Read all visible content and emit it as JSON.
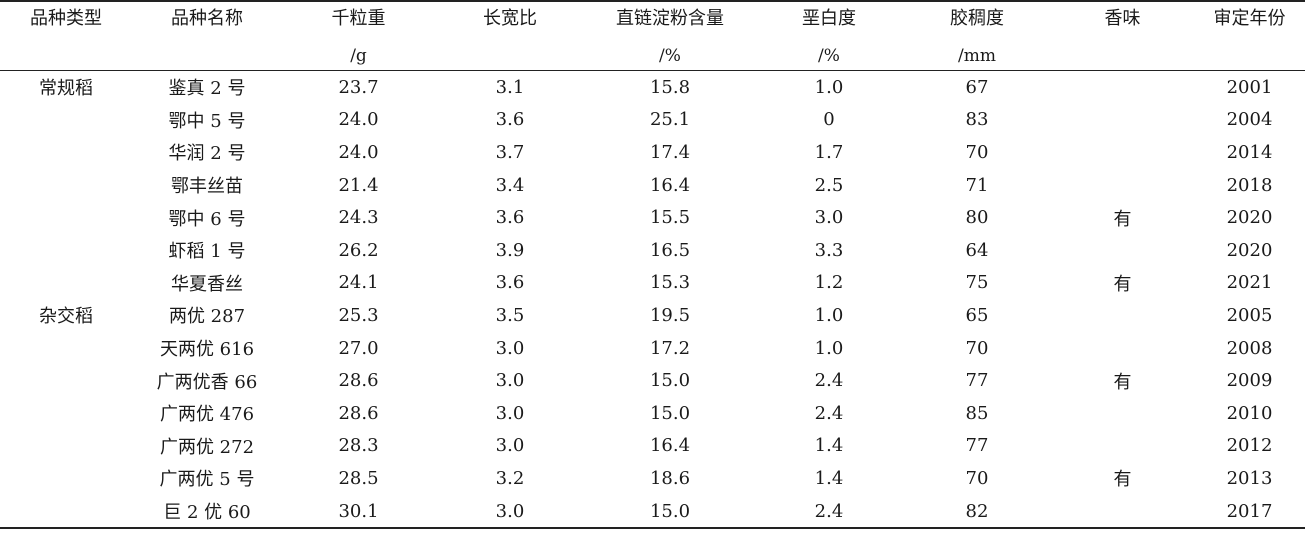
{
  "headers": [
    {
      "label": "品种类型",
      "unit": ""
    },
    {
      "label": "品种名称",
      "unit": ""
    },
    {
      "label": "千粒重",
      "unit": "/g"
    },
    {
      "label": "长宽比",
      "unit": ""
    },
    {
      "label": "直链淀粉含量",
      "unit": "/%"
    },
    {
      "label": "垩白度",
      "unit": "/%"
    },
    {
      "label": "胶稠度",
      "unit": "/mm"
    },
    {
      "label": "香味",
      "unit": ""
    },
    {
      "label": "审定年份",
      "unit": ""
    }
  ],
  "rows": [
    [
      "常规稻",
      "鉴真 2 号",
      "23.7",
      "3.1",
      "15.8",
      "1.0",
      "67",
      "",
      "2001"
    ],
    [
      "",
      "鄂中 5 号",
      "24.0",
      "3.6",
      "25.1",
      "0",
      "83",
      "",
      "2004"
    ],
    [
      "",
      "华润 2 号",
      "24.0",
      "3.7",
      "17.4",
      "1.7",
      "70",
      "",
      "2014"
    ],
    [
      "",
      "鄂丰丝苗",
      "21.4",
      "3.4",
      "16.4",
      "2.5",
      "71",
      "",
      "2018"
    ],
    [
      "",
      "鄂中 6 号",
      "24.3",
      "3.6",
      "15.5",
      "3.0",
      "80",
      "有",
      "2020"
    ],
    [
      "",
      "虾稻 1 号",
      "26.2",
      "3.9",
      "16.5",
      "3.3",
      "64",
      "",
      "2020"
    ],
    [
      "",
      "华夏香丝",
      "24.1",
      "3.6",
      "15.3",
      "1.2",
      "75",
      "有",
      "2021"
    ],
    [
      "杂交稻",
      "两优 287",
      "25.3",
      "3.5",
      "19.5",
      "1.0",
      "65",
      "",
      "2005"
    ],
    [
      "",
      "天两优 616",
      "27.0",
      "3.0",
      "17.2",
      "1.0",
      "70",
      "",
      "2008"
    ],
    [
      "",
      "广两优香 66",
      "28.6",
      "3.0",
      "15.0",
      "2.4",
      "77",
      "有",
      "2009"
    ],
    [
      "",
      "广两优 476",
      "28.6",
      "3.0",
      "15.0",
      "2.4",
      "85",
      "",
      "2010"
    ],
    [
      "",
      "广两优 272",
      "28.3",
      "3.0",
      "16.4",
      "1.4",
      "77",
      "",
      "2012"
    ],
    [
      "",
      "广两优 5 号",
      "28.5",
      "3.2",
      "18.6",
      "1.4",
      "70",
      "有",
      "2013"
    ],
    [
      "",
      "巨 2 优 60",
      "30.1",
      "3.0",
      "15.0",
      "2.4",
      "82",
      "",
      "2017"
    ]
  ]
}
